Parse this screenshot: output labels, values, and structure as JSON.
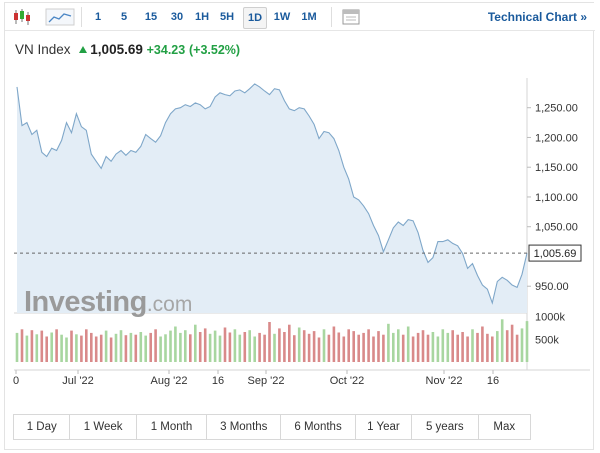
{
  "toolbar": {
    "intervals": [
      "1",
      "5",
      "15",
      "30",
      "1H",
      "5H",
      "1D",
      "1W",
      "1M"
    ],
    "active_interval": "1D",
    "technical_chart_label": "Technical Chart »",
    "icons": [
      "candlestick-icon",
      "area-chart-icon",
      "calendar-icon"
    ]
  },
  "header": {
    "index_name": "VN Index",
    "price": "1,005.69",
    "change": "+34.23",
    "change_pct": "(+3.52%)",
    "colors": {
      "up": "#22a044"
    }
  },
  "watermark": {
    "brand": "Investing",
    "suffix": ".com"
  },
  "periods": [
    "1 Day",
    "1 Week",
    "1 Month",
    "3 Months",
    "6 Months",
    "1 Year",
    "5 years",
    "Max"
  ],
  "chart_data": {
    "type": "area",
    "title": "VN Index",
    "xlabel": "",
    "ylabel": "",
    "x_ticks": [
      "0",
      "Jul '22",
      "Aug '22",
      "16",
      "Sep '22",
      "Oct '22",
      "Nov '22",
      "16"
    ],
    "y_ticks": [
      "1,250.00",
      "1,200.00",
      "1,150.00",
      "1,100.00",
      "1,050.00",
      "950.00"
    ],
    "y_tick_values": [
      1250,
      1200,
      1150,
      1100,
      1050,
      950
    ],
    "ylim": [
      905,
      1310
    ],
    "last_value_label": "1,005.69",
    "last_value": 1005.69,
    "series": [
      {
        "values": [
          1285,
          1220,
          1225,
          1205,
          1212,
          1175,
          1168,
          1182,
          1178,
          1195,
          1225,
          1208,
          1240,
          1218,
          1212,
          1172,
          1160,
          1148,
          1168,
          1160,
          1172,
          1178,
          1170,
          1178,
          1175,
          1185,
          1205,
          1198,
          1192,
          1203,
          1225,
          1240,
          1248,
          1250,
          1255,
          1252,
          1258,
          1255,
          1248,
          1252,
          1268,
          1275,
          1272,
          1270,
          1278,
          1280,
          1275,
          1282,
          1290,
          1285,
          1278,
          1272,
          1282,
          1280,
          1262,
          1248,
          1245,
          1250,
          1248,
          1236,
          1222,
          1198,
          1210,
          1208,
          1198,
          1178,
          1150,
          1130,
          1100,
          1095,
          1085,
          1072,
          1052,
          1035,
          1008,
          1028,
          1048,
          1058,
          1052,
          1062,
          1060,
          1040,
          1010,
          990,
          998,
          1025,
          1025,
          1028,
          1022,
          1018,
          1005,
          980,
          988,
          968,
          952,
          945,
          922,
          958,
          965,
          960,
          952,
          948,
          970,
          1005.69
        ]
      }
    ],
    "volume": {
      "y_ticks": [
        "1000k",
        "500k"
      ],
      "y_tick_values": [
        1000,
        500
      ],
      "unit": "k",
      "values": [
        640,
        720,
        580,
        700,
        610,
        690,
        560,
        650,
        720,
        600,
        540,
        690,
        610,
        580,
        720,
        640,
        560,
        600,
        690,
        540,
        620,
        700,
        590,
        640,
        600,
        660,
        580,
        640,
        720,
        560,
        610,
        690,
        780,
        640,
        700,
        610,
        820,
        660,
        740,
        620,
        690,
        580,
        760,
        650,
        720,
        600,
        660,
        700,
        560,
        640,
        600,
        880,
        620,
        740,
        660,
        820,
        590,
        760,
        700,
        620,
        680,
        540,
        720,
        600,
        780,
        650,
        560,
        720,
        680,
        600,
        640,
        720,
        560,
        680,
        600,
        840,
        640,
        720,
        600,
        780,
        560,
        640,
        700,
        600,
        660,
        560,
        720,
        640,
        700,
        600,
        660,
        560,
        720,
        640,
        780,
        620,
        560,
        680,
        940,
        700,
        820,
        600,
        740,
        900
      ],
      "colors": {
        "up": "#a8d6a0",
        "down": "#d98a8a"
      }
    },
    "grid": false,
    "fill_color": "#e3edf6",
    "line_color": "#7fa7c9"
  }
}
